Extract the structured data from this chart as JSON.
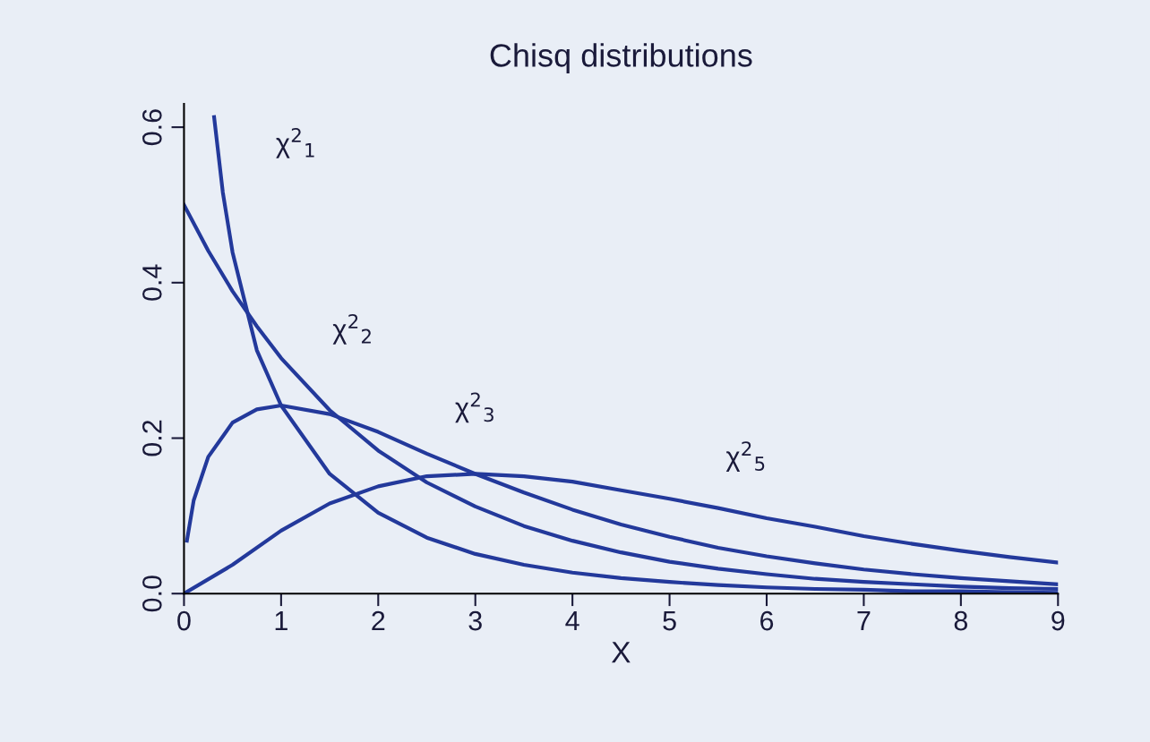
{
  "chart_data": {
    "type": "line",
    "title": "Chisq distributions",
    "xlabel": "X",
    "xlim": [
      0,
      9
    ],
    "xticks": [
      0,
      1,
      2,
      3,
      4,
      5,
      6,
      7,
      8,
      9
    ],
    "ylim": [
      0,
      0.63
    ],
    "yticks": [
      {
        "value": 0,
        "label": "0.0"
      },
      0.2,
      0.4,
      0.6
    ],
    "grid": false,
    "legend": false,
    "marker": "none",
    "line_style": "solid",
    "series": [
      {
        "name": "χ$^{2}$$_{1}$",
        "color": "#23399b",
        "x": [
          0.31,
          0.4,
          0.5,
          0.75,
          1,
          1.5,
          2,
          2.5,
          3,
          3.5,
          4,
          4.5,
          5,
          5.5,
          6,
          6.5,
          7,
          7.5,
          8,
          8.5,
          9
        ],
        "values": [
          0.613,
          0.516,
          0.439,
          0.313,
          0.242,
          0.154,
          0.104,
          0.072,
          0.051,
          0.037,
          0.027,
          0.02,
          0.015,
          0.011,
          0.008,
          0.006,
          0.005,
          0.003,
          0.003,
          0.002,
          0.001
        ]
      },
      {
        "name": "χ$^{2}$$_{2}$",
        "color": "#23399b",
        "x": [
          0,
          0.25,
          0.5,
          0.75,
          1,
          1.5,
          2,
          2.5,
          3,
          3.5,
          4,
          4.5,
          5,
          5.5,
          6,
          6.5,
          7,
          7.5,
          8,
          8.5,
          9
        ],
        "values": [
          0.5,
          0.441,
          0.389,
          0.344,
          0.303,
          0.236,
          0.184,
          0.143,
          0.112,
          0.087,
          0.068,
          0.053,
          0.041,
          0.032,
          0.025,
          0.019,
          0.015,
          0.012,
          0.009,
          0.007,
          0.006
        ]
      },
      {
        "name": "χ$^{2}$$_{3}$",
        "color": "#23399b",
        "x": [
          0.03,
          0.1,
          0.25,
          0.5,
          0.75,
          1,
          1.5,
          2,
          2.5,
          3,
          3.5,
          4,
          4.5,
          5,
          5.5,
          6,
          6.5,
          7,
          7.5,
          8,
          8.5,
          9
        ],
        "values": [
          0.068,
          0.12,
          0.176,
          0.22,
          0.237,
          0.242,
          0.231,
          0.208,
          0.18,
          0.154,
          0.13,
          0.108,
          0.089,
          0.073,
          0.059,
          0.048,
          0.039,
          0.031,
          0.025,
          0.02,
          0.016,
          0.012
        ]
      },
      {
        "name": "χ$^{2}$$_{5}$",
        "color": "#23399b",
        "x": [
          0,
          0.5,
          1,
          1.5,
          2,
          2.5,
          3,
          3.5,
          4,
          4.5,
          5,
          5.5,
          6,
          6.5,
          7,
          7.5,
          8,
          8.5,
          9
        ],
        "values": [
          0,
          0.037,
          0.081,
          0.116,
          0.138,
          0.151,
          0.154,
          0.151,
          0.144,
          0.133,
          0.122,
          0.11,
          0.097,
          0.086,
          0.074,
          0.064,
          0.055,
          0.047,
          0.04
        ]
      }
    ]
  }
}
